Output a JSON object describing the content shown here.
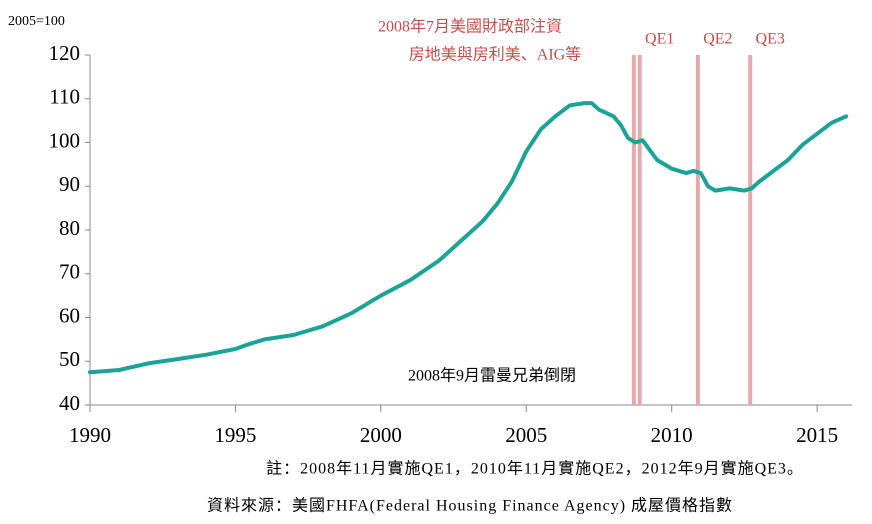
{
  "chart_data": {
    "type": "line",
    "y_label": "2005=100",
    "annotations": [
      "2008年7月美國財政部注資",
      "房地美與房利美、AIG等",
      "2008年9月雷曼兄弟倒閉"
    ],
    "notes": [
      "註：2008年11月實施QE1，2010年11月實施QE2，2012年9月實施QE3。",
      "資料來源：美國FHFA(Federal Housing Finance Agency) 成屋價格指數"
    ],
    "x": [
      1990,
      1991,
      1992,
      1993,
      1994,
      1995,
      1995.5,
      1996,
      1997,
      1998,
      1999,
      2000,
      2001,
      2002,
      2003,
      2003.5,
      2004,
      2004.5,
      2005,
      2005.5,
      2006,
      2006.5,
      2007,
      2007.25,
      2007.5,
      2008,
      2008.25,
      2008.5,
      2008.75,
      2009,
      2009.5,
      2010,
      2010.5,
      2010.75,
      2011,
      2011.25,
      2011.5,
      2012,
      2012.5,
      2012.75,
      2013,
      2013.5,
      2014,
      2014.5,
      2015,
      2015.5,
      2016
    ],
    "series": [
      {
        "name": "FHFA",
        "color": "#1aa396",
        "values": [
          47.5,
          48,
          49.5,
          50.5,
          51.5,
          52.8,
          54,
          55,
          56,
          58,
          61,
          65,
          68.5,
          73,
          79,
          82,
          86,
          91,
          98,
          103,
          106,
          108.5,
          109,
          109,
          107.5,
          106,
          104,
          101,
          100,
          100.5,
          96,
          94,
          93,
          93.5,
          93,
          90,
          89,
          89.5,
          89,
          89.5,
          91,
          93.5,
          96,
          99.5,
          102,
          104.5,
          106
        ]
      }
    ],
    "events": [
      {
        "x": 2008.7
      },
      {
        "x": 2008.9,
        "label": "QE1"
      },
      {
        "x": 2010.9,
        "label": "QE2"
      },
      {
        "x": 2012.7,
        "label": "QE3"
      }
    ],
    "event_color": "#e6a9a9",
    "xlim": [
      1990,
      2016.2
    ],
    "xticks": [
      1990,
      1995,
      2000,
      2005,
      2010,
      2015
    ],
    "ylim": [
      40,
      120
    ],
    "yticks": [
      40,
      50,
      60,
      70,
      80,
      90,
      100,
      110,
      120
    ]
  }
}
